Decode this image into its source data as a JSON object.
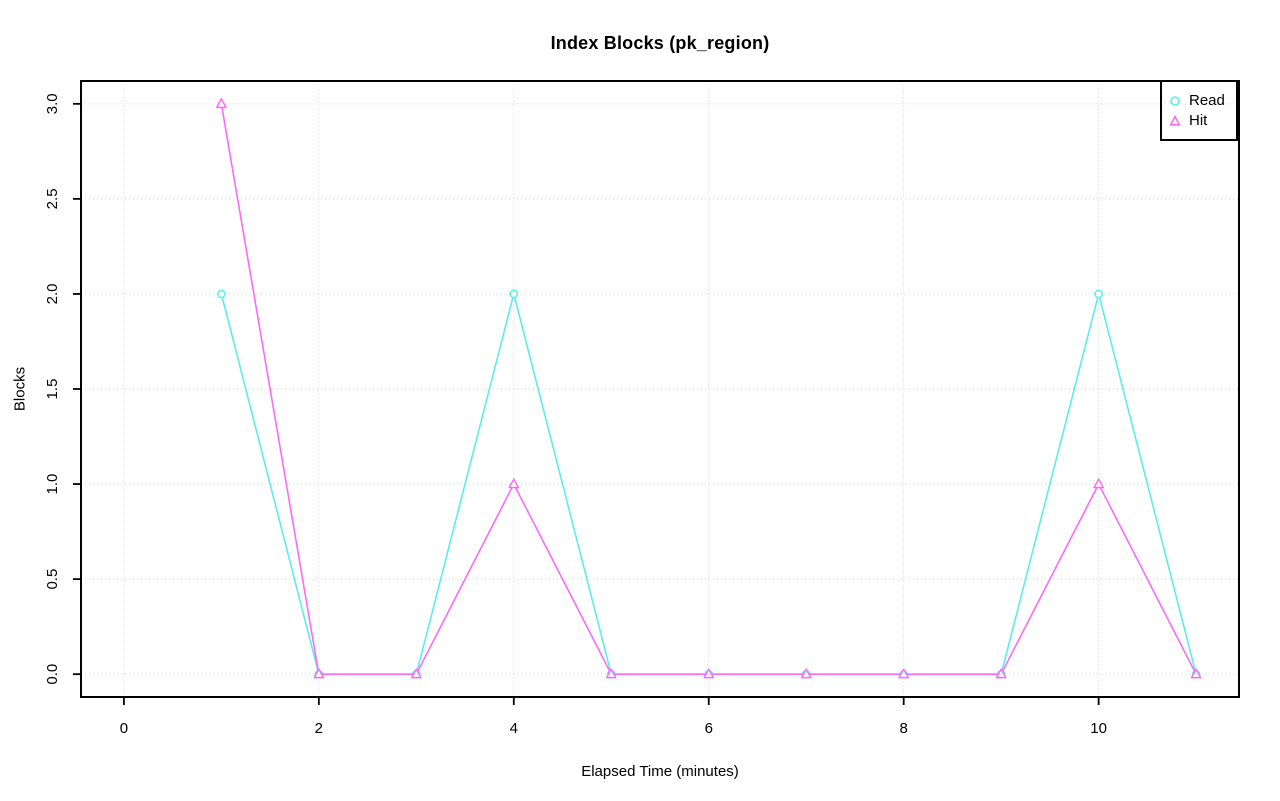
{
  "chart_data": {
    "type": "line",
    "title": "Index Blocks (pk_region)",
    "xlabel": "Elapsed Time (minutes)",
    "ylabel": "Blocks",
    "x": [
      1,
      2,
      3,
      4,
      5,
      6,
      7,
      8,
      9,
      10,
      11
    ],
    "series": [
      {
        "name": "Read",
        "marker": "circle",
        "color": "#5BEDED",
        "values": [
          2,
          0,
          0,
          2,
          0,
          0,
          0,
          0,
          0,
          2,
          0
        ]
      },
      {
        "name": "Hit",
        "marker": "triangle",
        "color": "#F96BF9",
        "values": [
          3,
          0,
          0,
          1,
          0,
          0,
          0,
          0,
          0,
          1,
          0
        ]
      }
    ],
    "x_ticks": [
      0,
      2,
      4,
      6,
      8,
      10
    ],
    "x_tick_labels": [
      "0",
      "2",
      "4",
      "6",
      "8",
      "10"
    ],
    "y_ticks": [
      0,
      0.5,
      1,
      1.5,
      2,
      2.5,
      3
    ],
    "y_tick_labels": [
      "0.0",
      "0.5",
      "1.0",
      "1.5",
      "2.0",
      "2.5",
      "3.0"
    ],
    "xlim": [
      -0.44,
      11.44
    ],
    "ylim": [
      -0.12,
      3.12
    ],
    "grid": true,
    "grid_color": "#D3D3D3",
    "frame_color": "#000000",
    "background": "#FFFFFF",
    "legend_position": "top-right"
  }
}
